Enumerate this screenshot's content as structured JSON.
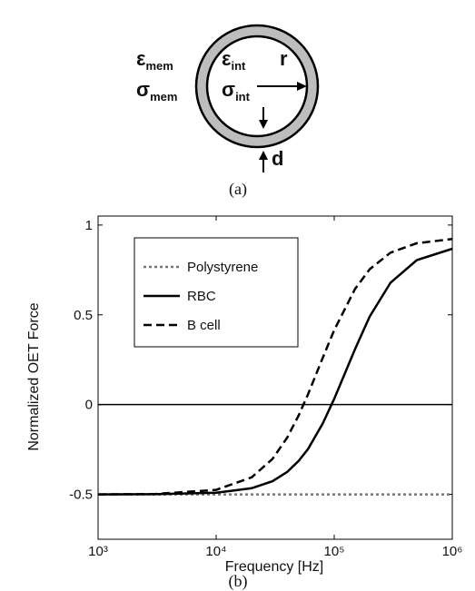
{
  "diagram": {
    "eps_mem": {
      "symbol": "ε",
      "sub": "mem"
    },
    "sigma_mem": {
      "symbol": "σ",
      "sub": "mem"
    },
    "eps_int": {
      "symbol": "ε",
      "sub": "int"
    },
    "sigma_int": {
      "symbol": "σ",
      "sub": "int"
    },
    "radius": "r",
    "thickness": "d",
    "caption": "(a)"
  },
  "chart_data": {
    "type": "line",
    "caption": "(b)",
    "xlabel": "Frequency [Hz]",
    "ylabel": "Normalized OET Force",
    "xscale": "log",
    "x": [
      1000,
      3000,
      10000,
      20000,
      30000,
      40000,
      50000,
      60000,
      80000,
      100000,
      150000,
      200000,
      300000,
      500000,
      1000000
    ],
    "series": [
      {
        "name": "Polystyrene",
        "color": "#777777",
        "line_style": "dotted",
        "values": [
          -0.5,
          -0.5,
          -0.5,
          -0.5,
          -0.5,
          -0.5,
          -0.5,
          -0.5,
          -0.5,
          -0.5,
          -0.5,
          -0.5,
          -0.5,
          -0.5,
          -0.5
        ]
      },
      {
        "name": "RBC",
        "color": "#000000",
        "line_style": "solid",
        "values": [
          -0.5,
          -0.499,
          -0.491,
          -0.466,
          -0.427,
          -0.375,
          -0.313,
          -0.247,
          -0.105,
          0.032,
          0.309,
          0.491,
          0.679,
          0.805,
          0.868
        ]
      },
      {
        "name": "B cell",
        "color": "#000000",
        "line_style": "dashed",
        "values": [
          -0.5,
          -0.498,
          -0.475,
          -0.405,
          -0.303,
          -0.183,
          -0.06,
          0.058,
          0.261,
          0.415,
          0.644,
          0.754,
          0.846,
          0.899,
          0.922
        ]
      }
    ],
    "xlim": [
      1000,
      1000000
    ],
    "xticks": [
      {
        "value": 1000,
        "label": "10³"
      },
      {
        "value": 10000,
        "label": "10⁴"
      },
      {
        "value": 100000,
        "label": "10⁵"
      },
      {
        "value": 1000000,
        "label": "10⁶"
      }
    ],
    "ylim": [
      -0.75,
      1.05
    ],
    "yticks": [
      -0.5,
      0,
      0.5,
      1
    ],
    "zero_line": true,
    "legend": "upper-left"
  }
}
